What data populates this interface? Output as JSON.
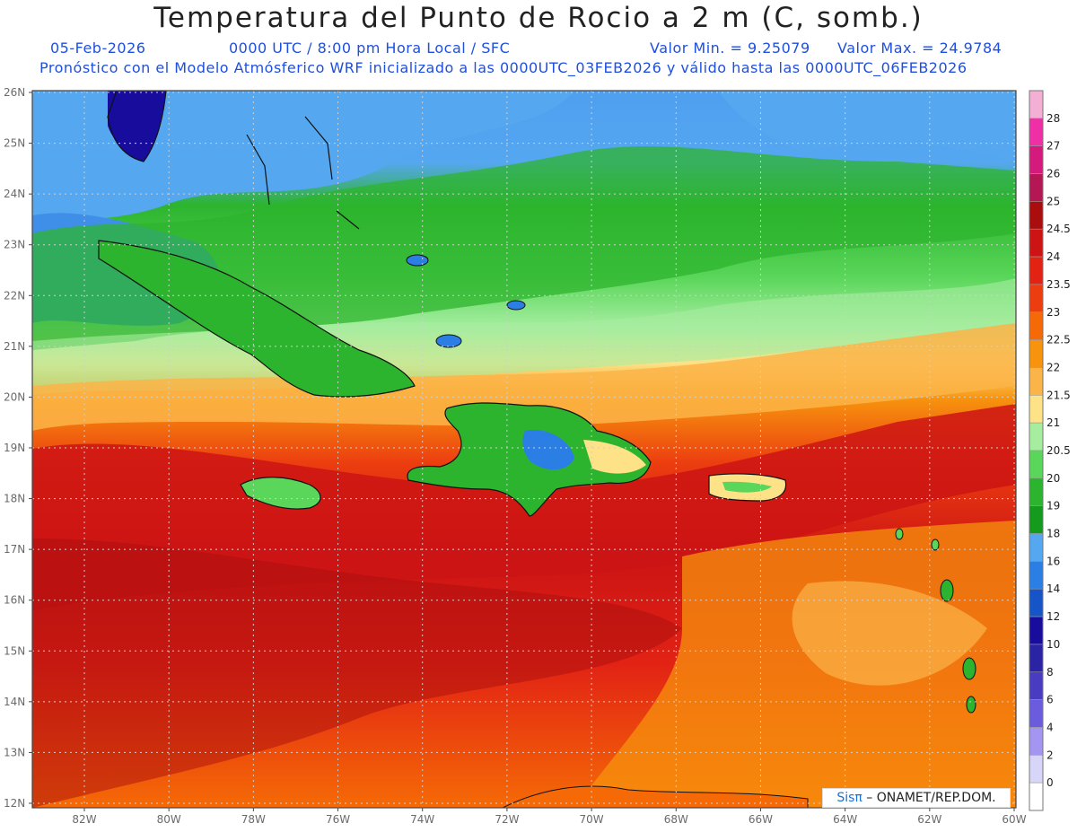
{
  "header": {
    "title": "Temperatura del Punto de Rocio a 2 m (C, somb.)",
    "date": "05-Feb-2026",
    "utc_line": "0000 UTC / 8:00 pm Hora Local / SFC",
    "valor_min": "Valor Min. = 9.25079",
    "valor_max": "Valor Max. = 24.9784",
    "model_line": "Pronóstico con el Modelo Atmósferico WRF inicializado a las 0000UTC_03FEB2026 y válido hasta las  0000UTC_06FEB2026"
  },
  "axes": {
    "lat_labels": [
      "26N",
      "25N",
      "24N",
      "23N",
      "22N",
      "21N",
      "20N",
      "19N",
      "18N",
      "17N",
      "16N",
      "15N",
      "14N",
      "13N",
      "12N"
    ],
    "lon_labels": [
      "82W",
      "80W",
      "78W",
      "76W",
      "74W",
      "72W",
      "70W",
      "68W",
      "66W",
      "64W",
      "62W",
      "60W"
    ]
  },
  "colorbar": {
    "levels": [
      "28",
      "27",
      "26",
      "25",
      "24.5",
      "24",
      "23.5",
      "23",
      "22.5",
      "22",
      "21.5",
      "21",
      "20.5",
      "20",
      "19",
      "18",
      "16",
      "14",
      "12",
      "10",
      "8",
      "6",
      "4",
      "2",
      "0"
    ],
    "colors": [
      "#f4b0d4",
      "#ee2fa6",
      "#d51a7e",
      "#b31754",
      "#aa0d0d",
      "#cc1414",
      "#e22314",
      "#ec3d10",
      "#f56a06",
      "#f7930d",
      "#fbb448",
      "#fde288",
      "#a6eda0",
      "#5ad65a",
      "#2db42e",
      "#149a1c",
      "#55a7f0",
      "#2b7ee4",
      "#1555c8",
      "#170c9c",
      "#2a23a4",
      "#4a3cc0",
      "#6a5cdc",
      "#a495f0",
      "#d8d6f8",
      "#ffffff"
    ]
  },
  "credit": {
    "sis": "Sisπ",
    "org": " – ONAMET/REP.DOM."
  }
}
